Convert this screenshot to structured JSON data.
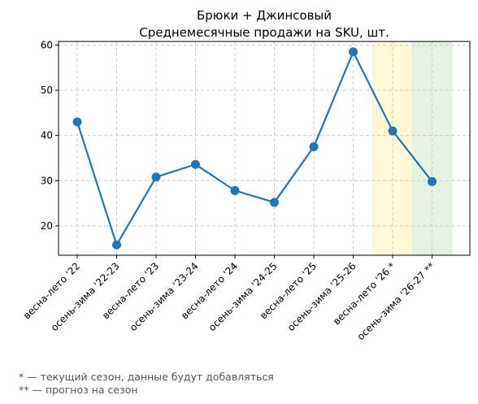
{
  "chart_data": {
    "type": "line",
    "title": "Брюки + Джинсовый",
    "subtitle": "Среднемесячные продажи на SKU, шт.",
    "xlabel": "",
    "ylabel": "",
    "categories": [
      "весна-лето '22",
      "осень-зима '22-23",
      "весна-лето '23",
      "осень-зима '23-24",
      "весна-лето '24",
      "осень-зима '24-25",
      "весна-лето '25",
      "осень-зима '25-26",
      "весна-лето '26 *",
      "осень-зима '26-27 **"
    ],
    "series": [
      {
        "values": [
          43.0,
          15.8,
          30.8,
          33.6,
          27.8,
          25.2,
          37.5,
          58.5,
          41.0,
          29.8
        ]
      }
    ],
    "ylim": [
      13.5,
      60.8
    ],
    "yticks": [
      20,
      30,
      40,
      50,
      60
    ],
    "grid": true,
    "line_color": "#1f77b4",
    "highlight_bands": [
      {
        "category": "весна-лето '26 *",
        "color": "#fff8d6"
      },
      {
        "category": "осень-зима '26-27 **",
        "color": "#e6f2e1"
      }
    ]
  },
  "footnotes": [
    "* — текущий сезон, данные будут добавляться",
    "** — прогноз на сезон"
  ]
}
